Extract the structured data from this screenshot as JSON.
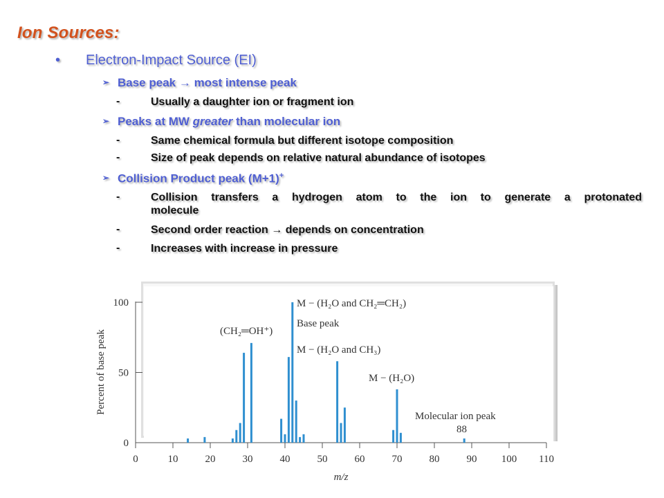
{
  "slide": {
    "title": "Ion Sources:",
    "bullet": {
      "marker": "•",
      "text": "Electron-Impact Source  (EI)"
    },
    "sections": [
      {
        "arrow": "➢",
        "heading_pre": "Base peak ",
        "heading_arrow": "→",
        "heading_post": " most intense peak",
        "points": [
          "Usually a daughter ion or fragment ion"
        ]
      },
      {
        "arrow": "➢",
        "heading_pre": "Peaks at MW ",
        "heading_italic": "greater",
        "heading_post": " than molecular ion",
        "points": [
          "Same chemical formula but different isotope composition",
          "Size of peak depends on relative natural abundance of isotopes"
        ]
      },
      {
        "arrow": "➢",
        "heading_pre": "Collision Product peak (M+1)",
        "heading_sup": "+",
        "points": [
          "Collision transfers a hydrogen atom to the ion to generate a protonated",
          "molecule",
          "Second order reaction → depends on concentration",
          "Increases with increase in pressure"
        ]
      }
    ],
    "dash": "-"
  },
  "chart_data": {
    "type": "bar",
    "xlabel": "m/z",
    "ylabel": "Percent of base peak",
    "xlim": [
      0,
      110
    ],
    "ylim": [
      0,
      100
    ],
    "xticks": [
      0,
      10,
      20,
      30,
      40,
      50,
      60,
      70,
      80,
      90,
      100,
      110
    ],
    "yticks": [
      0,
      50,
      100
    ],
    "peaks": [
      {
        "mz": 14,
        "value": 3
      },
      {
        "mz": 18.5,
        "value": 4
      },
      {
        "mz": 26,
        "value": 3
      },
      {
        "mz": 27,
        "value": 9
      },
      {
        "mz": 28,
        "value": 14
      },
      {
        "mz": 29,
        "value": 64
      },
      {
        "mz": 31,
        "value": 71
      },
      {
        "mz": 39,
        "value": 17
      },
      {
        "mz": 40,
        "value": 6
      },
      {
        "mz": 41,
        "value": 61
      },
      {
        "mz": 42,
        "value": 100
      },
      {
        "mz": 43,
        "value": 30
      },
      {
        "mz": 44,
        "value": 4
      },
      {
        "mz": 45,
        "value": 6
      },
      {
        "mz": 54,
        "value": 58
      },
      {
        "mz": 55,
        "value": 14
      },
      {
        "mz": 56,
        "value": 25
      },
      {
        "mz": 69,
        "value": 9
      },
      {
        "mz": 70,
        "value": 38
      },
      {
        "mz": 71,
        "value": 7
      },
      {
        "mz": 88,
        "value": 3
      }
    ],
    "bar_color": "#2f8fd0",
    "annotations": [
      "M − (H₂O and CH₂═CH₂)",
      "Base peak",
      "(CH₂═OH⁺)",
      "M − (H₂O and CH₃)",
      "M − (H₂O)",
      "Molecular ion peak",
      "88"
    ]
  }
}
